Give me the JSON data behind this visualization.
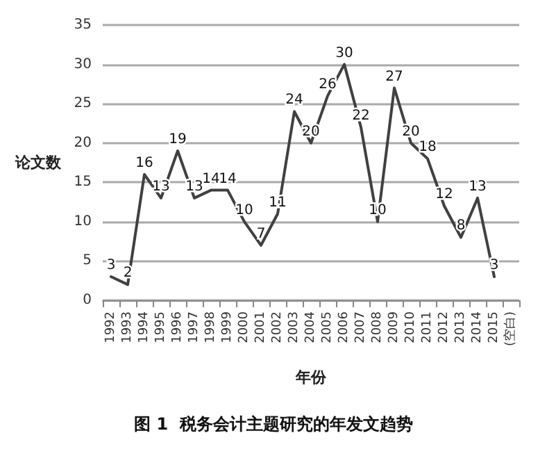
{
  "chart_data": {
    "type": "line",
    "title": "图 1  税务会计主题研究的年发文趋势",
    "xlabel": "年份",
    "ylabel": "论文数",
    "categories": [
      "1992",
      "1993",
      "1994",
      "1995",
      "1996",
      "1997",
      "1998",
      "1999",
      "2000",
      "2001",
      "2002",
      "2003",
      "2004",
      "2005",
      "2006",
      "2007",
      "2008",
      "2009",
      "2010",
      "2011",
      "2012",
      "2013",
      "2014",
      "2015",
      "(空白)"
    ],
    "series": [
      {
        "color": "#404040",
        "values": [
          3,
          2,
          16,
          13,
          19,
          13,
          14,
          14,
          10,
          7,
          11,
          24,
          20,
          26,
          30,
          22,
          10,
          27,
          20,
          18,
          12,
          8,
          13,
          3,
          null
        ]
      }
    ],
    "ylim": [
      0,
      35
    ],
    "yticks": [
      0,
      5,
      10,
      15,
      20,
      25,
      30,
      35
    ],
    "grid": "y",
    "marker": "none",
    "line_style": "solid",
    "data_labels": true
  }
}
